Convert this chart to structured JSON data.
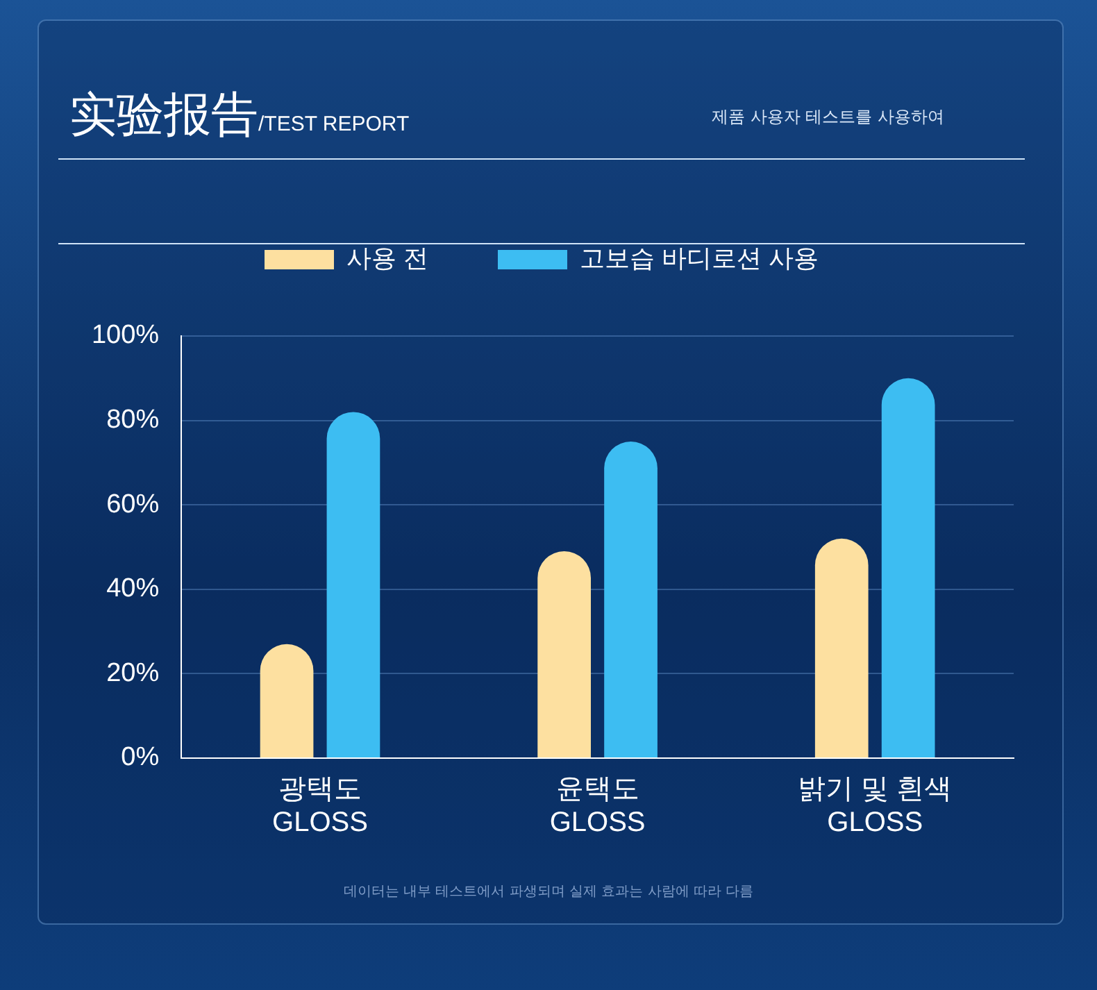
{
  "chart_data": {
    "type": "bar",
    "title": "实验报告/TEST REPORT",
    "subtitle": "제품 사용자 테스트를 사용하여",
    "categories": [
      "광택도\nGLOSS",
      "윤택도\nGLOSS",
      "밝기 및 흰색\nGLOSS"
    ],
    "series": [
      {
        "name": "사용 전",
        "color": "#fde0a0",
        "values": [
          27,
          49,
          52
        ]
      },
      {
        "name": "고보습 바디로션 사용",
        "color": "#3dbdf2",
        "values": [
          82,
          75,
          90
        ]
      }
    ],
    "ylim": [
      0,
      100
    ],
    "yticks": [
      {
        "value": 0,
        "label": "0%"
      },
      {
        "value": 20,
        "label": "20%"
      },
      {
        "value": 40,
        "label": "40%"
      },
      {
        "value": 60,
        "label": "60%"
      },
      {
        "value": 80,
        "label": "80%"
      },
      {
        "value": 100,
        "label": "100%"
      }
    ],
    "grid": "y",
    "legend": "top",
    "annotations": [
      "데이터는 내부 테스트에서 파생되며 실제 효과는 사람에 따라 다름"
    ]
  }
}
